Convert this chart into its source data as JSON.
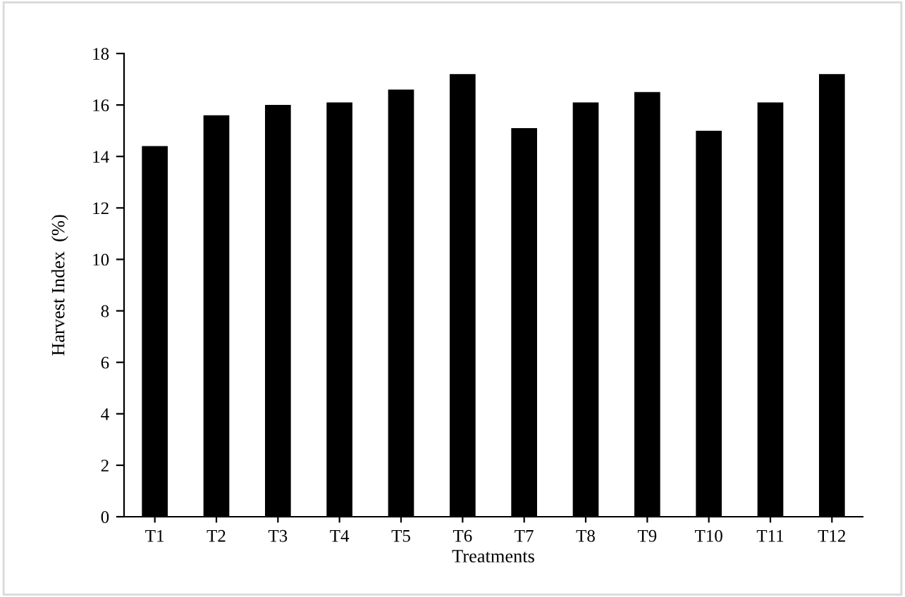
{
  "chart_data": {
    "type": "bar",
    "xlabel": "Treatments",
    "ylabel": "Harvest Index  (%)",
    "categories": [
      "T1",
      "T2",
      "T3",
      "T4",
      "T5",
      "T6",
      "T7",
      "T8",
      "T9",
      "T10",
      "T11",
      "T12"
    ],
    "values": [
      14.4,
      15.6,
      16.0,
      16.1,
      16.6,
      17.2,
      15.1,
      16.1,
      16.5,
      15.0,
      16.1,
      17.2
    ],
    "color": "#000000",
    "ylim": [
      0,
      18
    ],
    "yticks": [
      0,
      2,
      4,
      6,
      8,
      10,
      12,
      14,
      16,
      18
    ],
    "grid": false
  }
}
